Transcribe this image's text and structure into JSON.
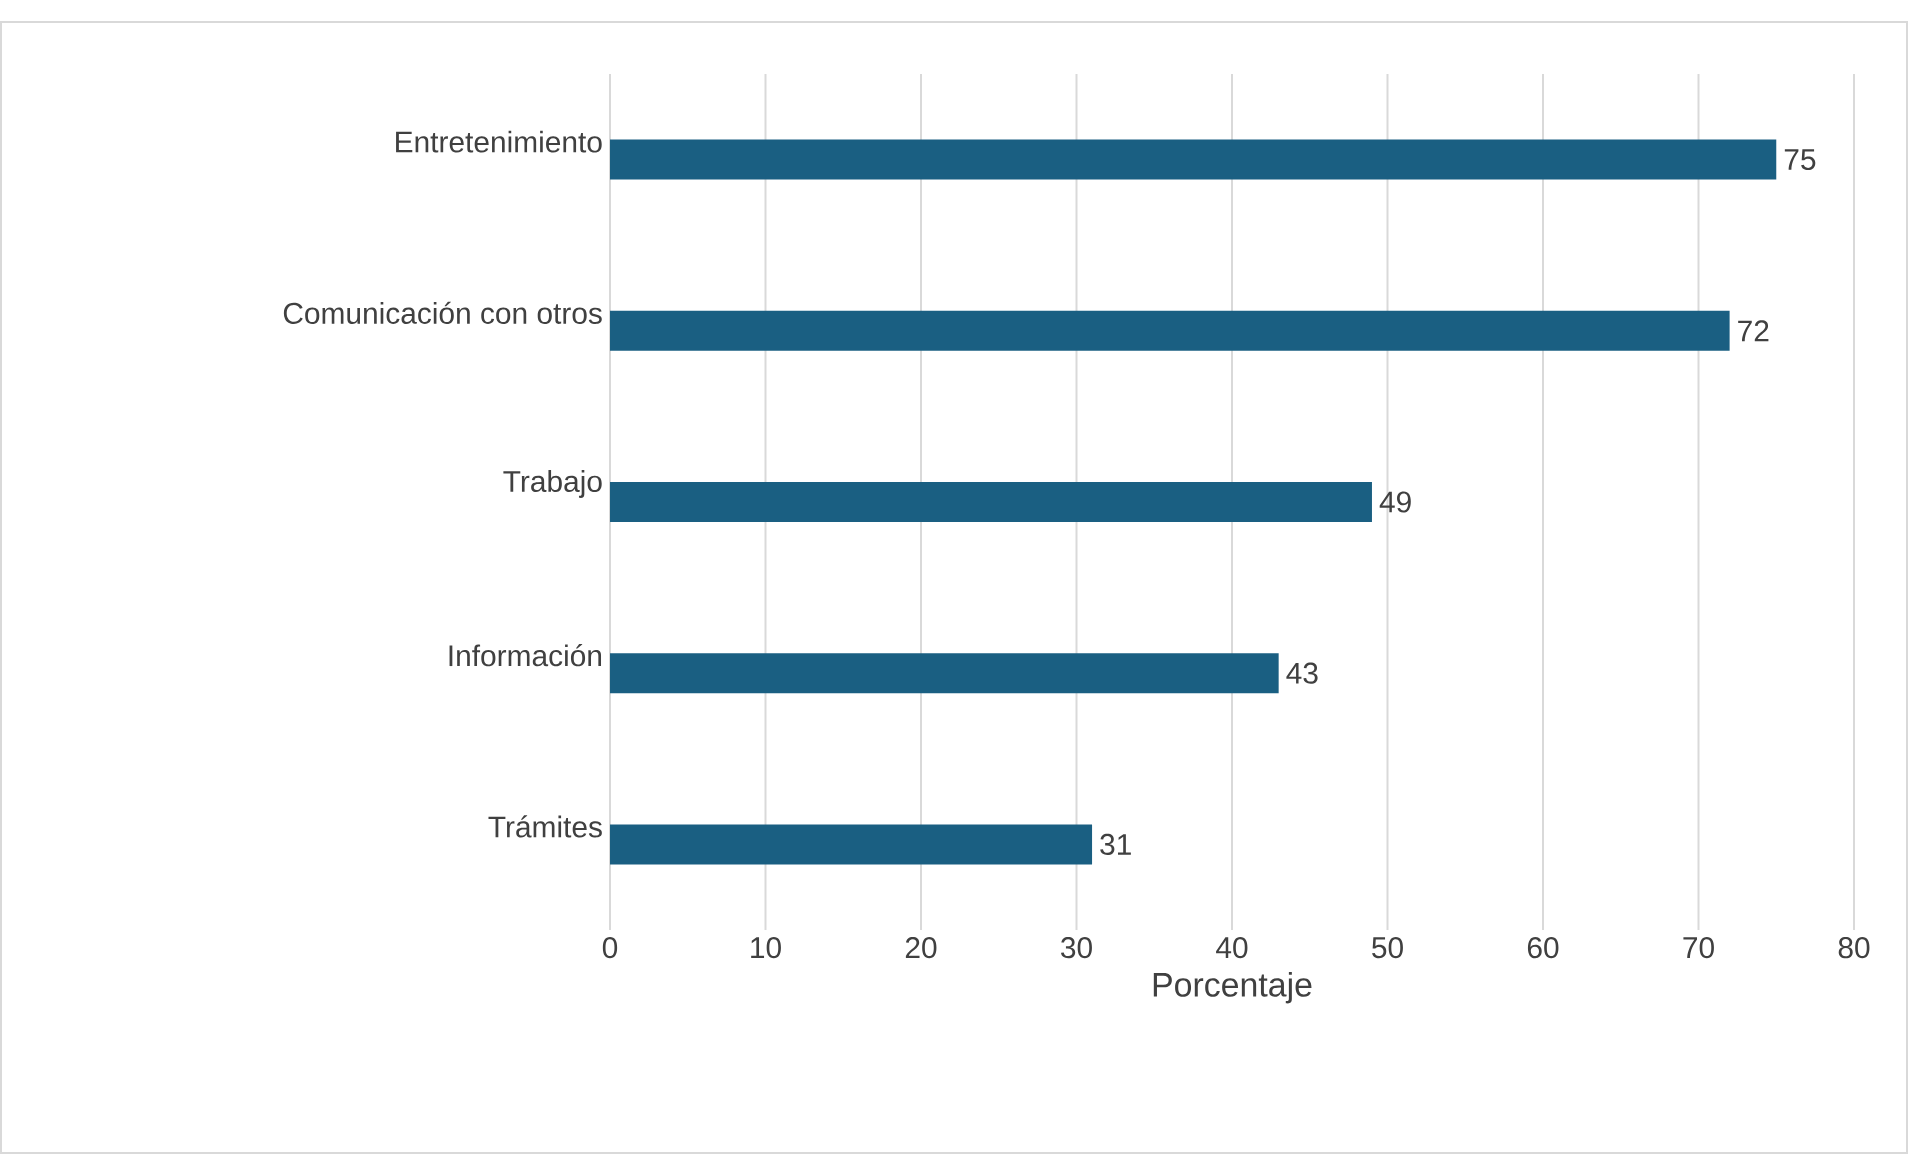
{
  "chart_data": {
    "type": "bar",
    "orientation": "horizontal",
    "xlabel": "Porcentaje",
    "categories": [
      "Entretenimiento",
      "Comunicación con otros",
      "Trabajo",
      "Información",
      "Trámites"
    ],
    "values": [
      75,
      72,
      49,
      43,
      31
    ],
    "color": "#1a5f82",
    "xlim": [
      0,
      80
    ],
    "xticks": [
      0,
      10,
      20,
      30,
      40,
      50,
      60,
      70,
      80
    ],
    "grid": "x",
    "data_labels": true
  }
}
